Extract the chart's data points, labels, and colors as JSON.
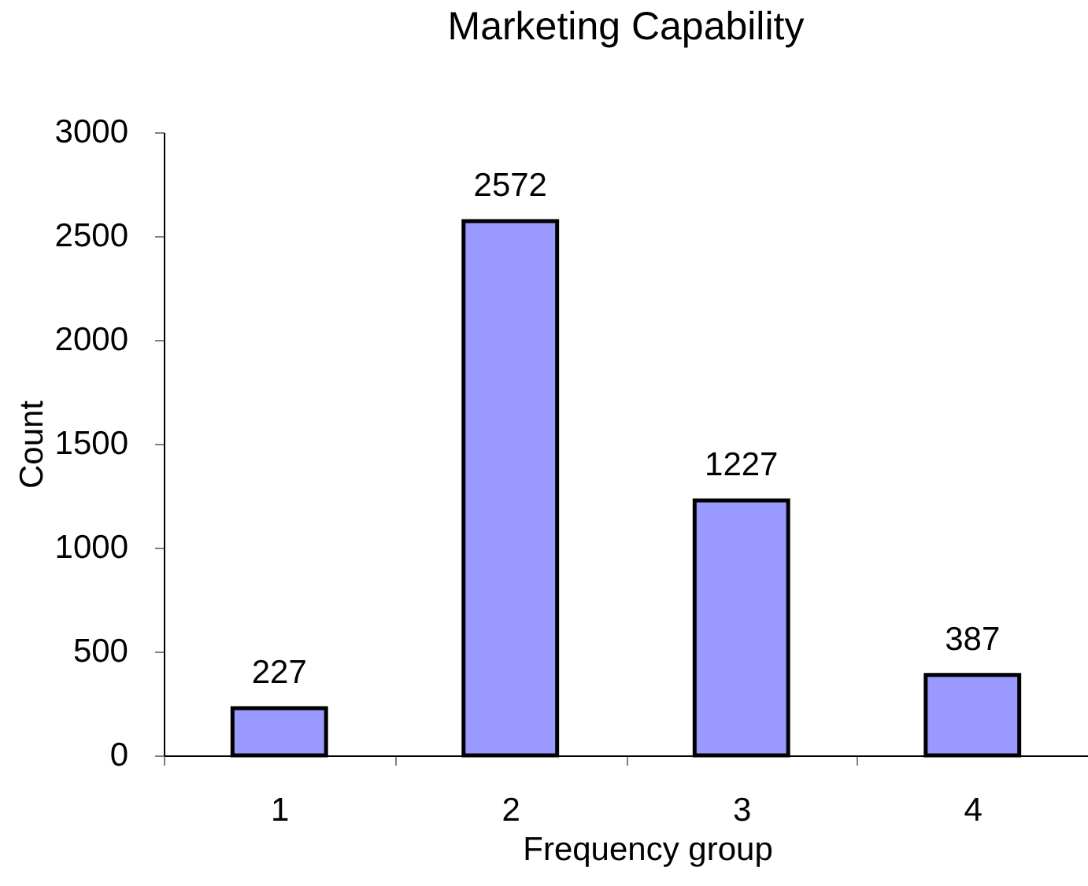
{
  "chart_data": {
    "type": "bar",
    "title": "Marketing Capability",
    "xlabel": "Frequency group",
    "ylabel": "Count",
    "categories": [
      "1",
      "2",
      "3",
      "4"
    ],
    "values": [
      227,
      2572,
      1227,
      387
    ],
    "color": "#9999ff",
    "ylim": [
      0,
      3000
    ],
    "yticks": [
      0,
      500,
      1000,
      1500,
      2000,
      2500,
      3000
    ],
    "data_labels": true,
    "grid": false
  }
}
